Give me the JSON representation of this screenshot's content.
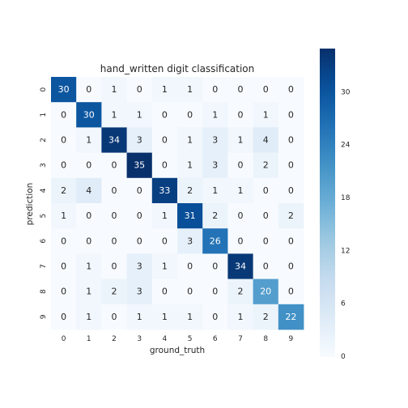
{
  "chart_data": {
    "type": "heatmap",
    "title": "hand_written digit classification",
    "xlabel": "ground_truth",
    "ylabel": "prediction",
    "x_ticks": [
      "0",
      "1",
      "2",
      "3",
      "4",
      "5",
      "6",
      "7",
      "8",
      "9"
    ],
    "y_ticks": [
      "0",
      "1",
      "2",
      "3",
      "4",
      "5",
      "6",
      "7",
      "8",
      "9"
    ],
    "values": [
      [
        30,
        0,
        1,
        0,
        1,
        1,
        0,
        0,
        0,
        0
      ],
      [
        0,
        30,
        1,
        1,
        0,
        0,
        1,
        0,
        1,
        0
      ],
      [
        0,
        1,
        34,
        3,
        0,
        1,
        3,
        1,
        4,
        0
      ],
      [
        0,
        0,
        0,
        35,
        0,
        1,
        3,
        0,
        2,
        0
      ],
      [
        2,
        4,
        0,
        0,
        33,
        2,
        1,
        1,
        0,
        0
      ],
      [
        1,
        0,
        0,
        0,
        1,
        31,
        2,
        0,
        0,
        2
      ],
      [
        0,
        0,
        0,
        0,
        0,
        3,
        26,
        0,
        0,
        0
      ],
      [
        0,
        1,
        0,
        3,
        1,
        0,
        0,
        34,
        0,
        0
      ],
      [
        0,
        1,
        2,
        3,
        0,
        0,
        0,
        2,
        20,
        0
      ],
      [
        0,
        1,
        0,
        1,
        1,
        1,
        0,
        1,
        2,
        22
      ]
    ],
    "colormap": "Blues",
    "vmin": 0,
    "vmax": 35,
    "colorbar_ticks": [
      "0",
      "6",
      "12",
      "18",
      "24",
      "30"
    ],
    "colorbar_tick_values": [
      0,
      6,
      12,
      18,
      24,
      30
    ],
    "grid": false,
    "legend": "colorbar-right"
  }
}
